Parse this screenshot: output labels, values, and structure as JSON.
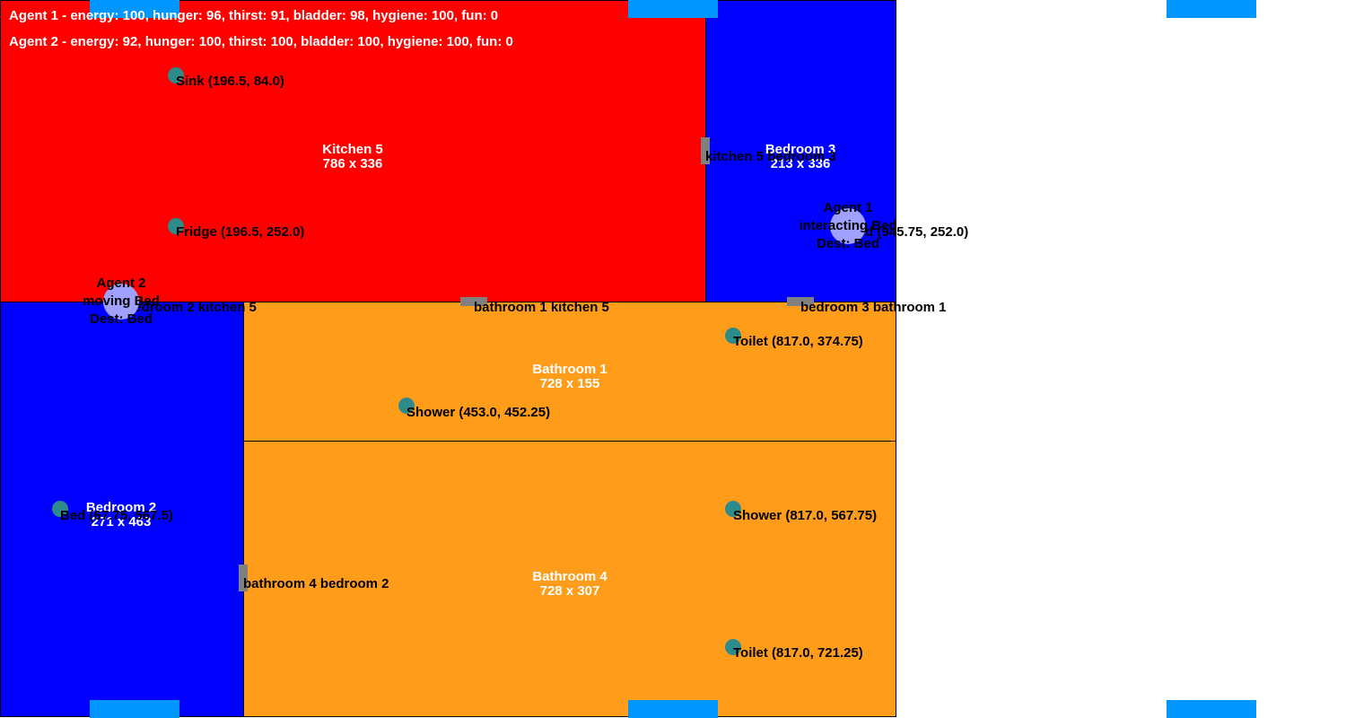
{
  "colors": {
    "kitchen": "#ff0000",
    "bedroom": "#0000ff",
    "bathroom": "#ff9d1b",
    "object": "#2e8b8b",
    "agent": "#a0a0ff",
    "door": "#808080",
    "window": "#0096ff"
  },
  "status": {
    "agent1": "Agent 1 - energy: 100, hunger: 96, thirst: 91, bladder: 98, hygiene: 100, fun: 0",
    "agent2": "Agent 2 - energy: 92, hunger: 100, thirst: 100, bladder: 100, hygiene: 100, fun: 0"
  },
  "rooms": {
    "kitchen5": {
      "name": "Kitchen 5",
      "size": "786 x 336"
    },
    "bedroom3": {
      "name": "Bedroom 3",
      "size": "213 x 336"
    },
    "bathroom1": {
      "name": "Bathroom 1",
      "size": "728 x 155"
    },
    "bedroom2": {
      "name": "Bedroom 2",
      "size": "271 x 463"
    },
    "bathroom4": {
      "name": "Bathroom 4",
      "size": "728 x 307"
    }
  },
  "doors": {
    "kitchen_bedroom3": "kitchen 5 bedroom 3",
    "bedroom2_kitchen5": "bedroom 2 kitchen 5",
    "bathroom1_kitchen5": "bathroom 1 kitchen 5",
    "bedroom3_bathroom1": "bedroom 3 bathroom 1",
    "bathroom4_bedroom2": "bathroom 4 bedroom 2"
  },
  "objects": {
    "sink": "Sink (196.5, 84.0)",
    "fridge": "Fridge (196.5, 252.0)",
    "bed3": "Bed (945.75, 252.0)",
    "toilet1": "Toilet (817.0, 374.75)",
    "shower1": "Shower (453.0, 452.25)",
    "bed2": "Bed (67.75, 567.5)",
    "shower4": "Shower (817.0, 567.75)",
    "toilet4": "Toilet (817.0, 721.25)"
  },
  "agents": {
    "agent1": {
      "name": "Agent 1",
      "state": "interacting Bed",
      "dest": "Dest: Bed"
    },
    "agent2": {
      "name": "Agent 2",
      "state": "moving Bed",
      "dest": "Dest: Bed"
    }
  }
}
